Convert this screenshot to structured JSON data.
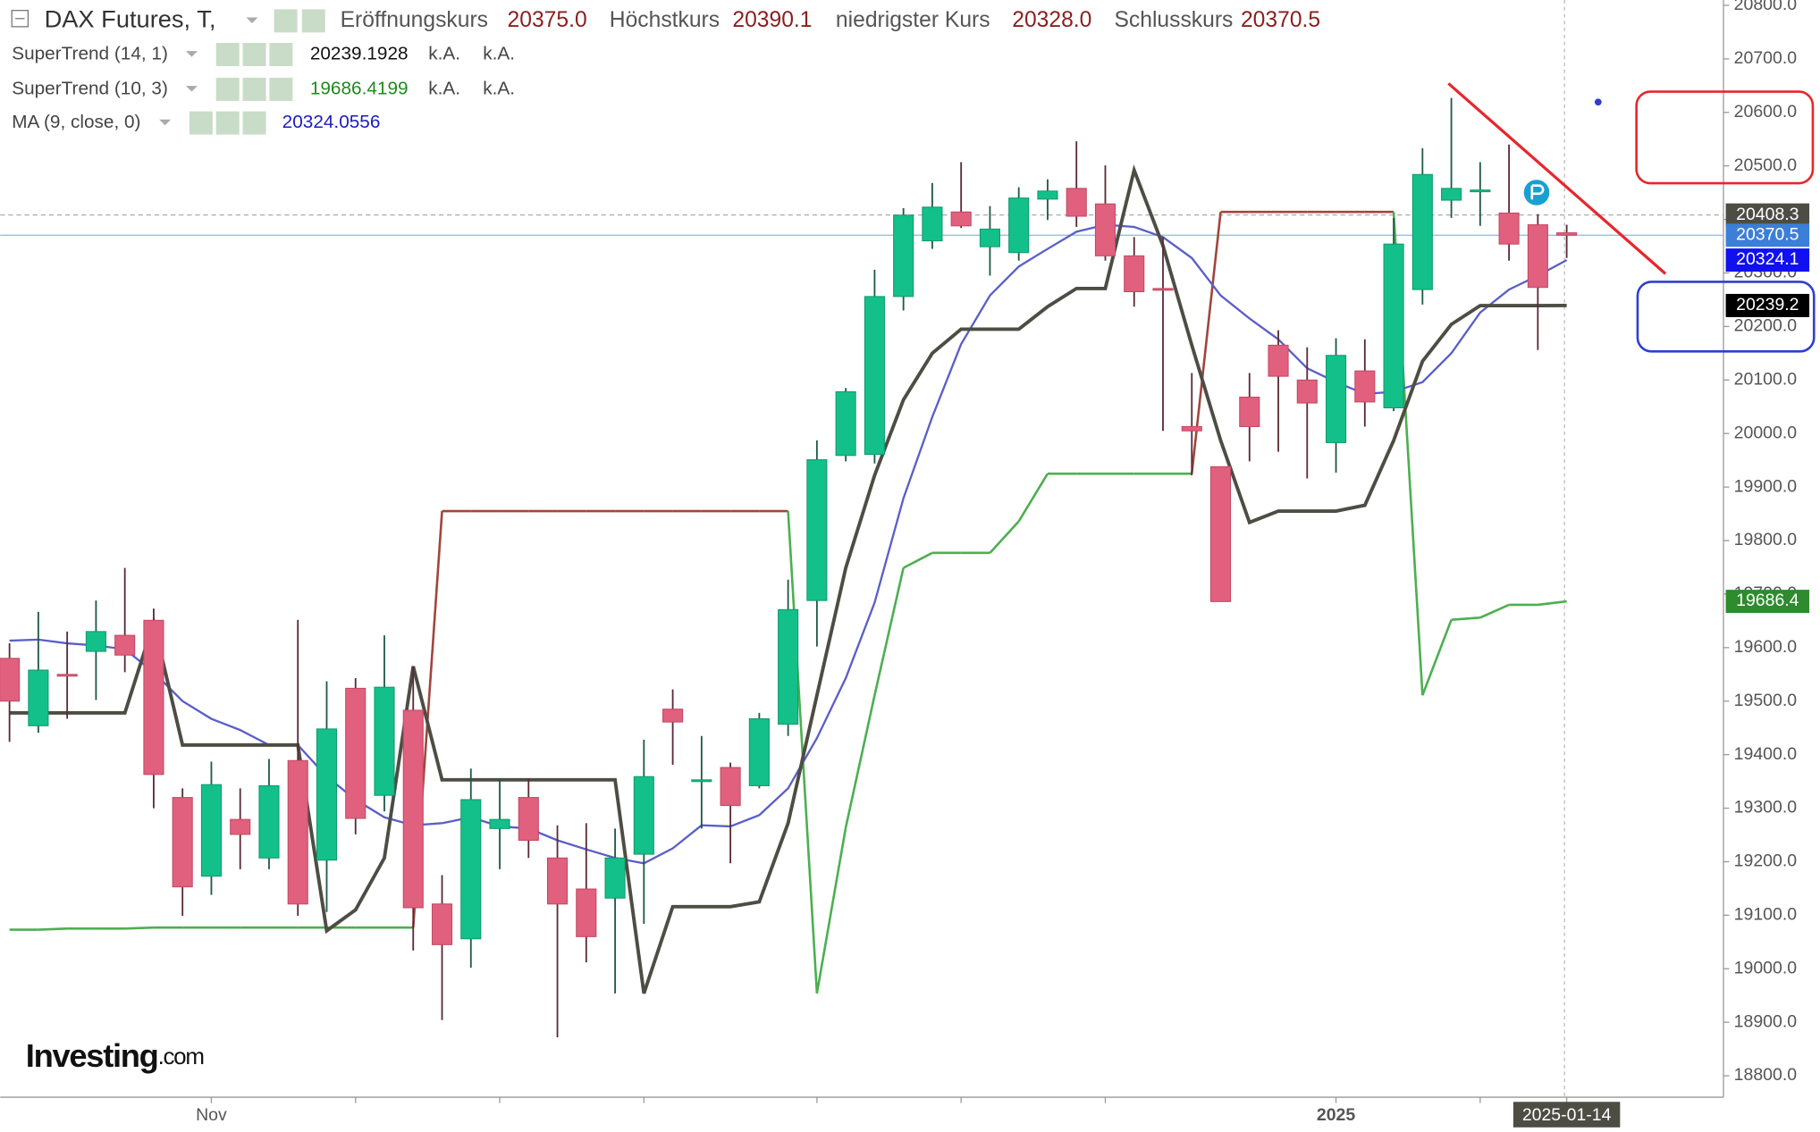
{
  "chart_data": {
    "type": "candlestick",
    "title": "DAX Futures, T,",
    "ohlc_names": [
      "Eröffnungskurs",
      "Höchstkurs",
      "niedrigster Kurs",
      "Schlusskurs"
    ],
    "ohlc_last_labels": [
      "20375.0",
      "20390.1",
      "20328.0",
      "20370.5"
    ],
    "categories": [
      null,
      null,
      null,
      null,
      null,
      null,
      null,
      "Nov",
      null,
      null,
      null,
      null,
      null,
      null,
      null,
      null,
      null,
      null,
      null,
      null,
      null,
      null,
      null,
      null,
      null,
      null,
      null,
      null,
      null,
      null,
      null,
      null,
      null,
      null,
      null,
      null,
      null,
      null,
      null,
      null,
      null,
      null,
      null,
      null,
      null,
      null,
      "2025",
      null,
      null,
      null,
      null,
      null,
      null,
      null,
      "2025-01-14"
    ],
    "open": [
      19580,
      19454,
      19550,
      19593,
      19623,
      19651,
      19320,
      19173,
      19279,
      19207,
      19389,
      19203,
      19524,
      19324,
      19483,
      19121,
      19056,
      19262,
      19320,
      19207,
      19149,
      19132,
      19214,
      19485,
      19353,
      19376,
      19342,
      19457,
      19688,
      19959,
      19961,
      20256,
      20360,
      20414,
      20349,
      20338,
      20438,
      20458,
      20429,
      20332,
      20271,
      20013,
      19938,
      20068,
      20165,
      20100,
      19983,
      20117,
      20048,
      20269,
      20436,
      20455,
      20412,
      20390,
      20375
    ],
    "high": [
      19608,
      19667,
      19630,
      19688,
      19749,
      19673,
      19337,
      19387,
      19337,
      19392,
      19652,
      19537,
      19543,
      19623,
      19565,
      19175,
      19374,
      19355,
      19355,
      19268,
      19272,
      19262,
      19428,
      19522,
      19435,
      19385,
      19478,
      19727,
      19987,
      20085,
      20306,
      20421,
      20468,
      20507,
      20425,
      20460,
      20475,
      20546,
      20501,
      20367,
      20367,
      20113,
      19938,
      20113,
      20193,
      20161,
      20178,
      20176,
      20403,
      20533,
      20627,
      20507,
      20540,
      20410,
      20390.1
    ],
    "low": [
      19424,
      19441,
      19467,
      19502,
      19554,
      19300,
      19099,
      19138,
      19186,
      19186,
      19099,
      19106,
      19251,
      19294,
      19034,
      18904,
      19002,
      19186,
      19207,
      18872,
      19012,
      18954,
      19084,
      19381,
      19262,
      19197,
      19337,
      19435,
      19602,
      19948,
      19944,
      20230,
      20345,
      20384,
      20295,
      20323,
      20399,
      20386,
      20323,
      20237,
      20005,
      19922,
      19686,
      19948,
      19966,
      19916,
      19927,
      20013,
      20042,
      20241,
      20403,
      20388,
      20323,
      20156,
      20328
    ],
    "close": [
      19500,
      19558,
      19548,
      19630,
      19586,
      19363,
      19153,
      19344,
      19251,
      19342,
      19121,
      19448,
      19281,
      19526,
      19114,
      19045,
      19316,
      19279,
      19240,
      19121,
      19060,
      19207,
      19359,
      19461,
      19353,
      19305,
      19467,
      19671,
      19951,
      20078,
      20256,
      20408,
      20423,
      20388,
      20382,
      20440,
      20453,
      20406,
      20332,
      20265,
      20269,
      20005,
      19686,
      20013,
      20107,
      20057,
      20146,
      20059,
      20354,
      20484,
      20458,
      20455,
      20354,
      20273,
      20370.5
    ],
    "up_color": "#14c08a",
    "down_color": "#e0607e",
    "series": [
      {
        "name": "SuperTrend (14, 1)",
        "color": "#4d4d44",
        "value_color": "#111111",
        "extra": [
          "k.A.",
          "k.A."
        ],
        "values": [
          19478,
          19478,
          19478,
          19478,
          19478,
          19647,
          19418,
          19418,
          19418,
          19418,
          19418,
          19071,
          19110,
          19207,
          19565,
          19353,
          19353,
          19353,
          19353,
          19353,
          19353,
          19353,
          18954,
          19116,
          19116,
          19116,
          19125,
          19272,
          19511,
          19749,
          19922,
          20063,
          20150,
          20195,
          20195,
          20195,
          20237,
          20271,
          20271,
          20492,
          20351,
          20165,
          19987,
          19834,
          19855,
          19855,
          19855,
          19866,
          19987,
          20135,
          20204,
          20239,
          20239,
          20239,
          20239.1928
        ]
      },
      {
        "name": "SuperTrend (10, 3)",
        "color": "#4caf50",
        "value_color": "#1d8a1d",
        "extra": [
          "k.A.",
          "k.A."
        ],
        "values": [
          19073,
          19073,
          19075,
          19075,
          19075,
          19077,
          19077,
          19077,
          19077,
          19077,
          19077,
          19077,
          19077,
          19077,
          19077,
          19855,
          19855,
          19855,
          19855,
          19855,
          19855,
          19855,
          19855,
          19855,
          19855,
          19855,
          19855,
          19855,
          18954,
          19264,
          19511,
          19749,
          19777,
          19777,
          19777,
          19836,
          19925,
          19925,
          19925,
          19925,
          19925,
          19925,
          20414,
          20414,
          20414,
          20414,
          20414,
          20414,
          20414,
          19511,
          19652,
          19656,
          19680,
          19680,
          19686.4199
        ],
        "point_colors": [
          "#4caf50",
          "#4caf50",
          "#4caf50",
          "#4caf50",
          "#4caf50",
          "#4caf50",
          "#4caf50",
          "#4caf50",
          "#4caf50",
          "#4caf50",
          "#4caf50",
          "#4caf50",
          "#4caf50",
          "#4caf50",
          "#4caf50",
          "#a0463c",
          "#a0463c",
          "#a0463c",
          "#a0463c",
          "#a0463c",
          "#a0463c",
          "#a0463c",
          "#a0463c",
          "#a0463c",
          "#a0463c",
          "#a0463c",
          "#a0463c",
          "#a0463c",
          "#4caf50",
          "#4caf50",
          "#4caf50",
          "#4caf50",
          "#4caf50",
          "#4caf50",
          "#4caf50",
          "#4caf50",
          "#4caf50",
          "#4caf50",
          "#4caf50",
          "#4caf50",
          "#4caf50",
          "#4caf50",
          "#a0463c",
          "#a0463c",
          "#a0463c",
          "#a0463c",
          "#a0463c",
          "#a0463c",
          "#a0463c",
          "#4caf50",
          "#4caf50",
          "#4caf50",
          "#4caf50",
          "#4caf50",
          "#4caf50"
        ]
      },
      {
        "name": "MA (9, close, 0)",
        "color": "#5a5fc8",
        "value_color": "#1c1cc0",
        "values": [
          19613,
          19615,
          19608,
          19604,
          19597,
          19554,
          19500,
          19467,
          19446,
          19418,
          19418,
          19359,
          19316,
          19283,
          19268,
          19272,
          19283,
          19266,
          19262,
          19240,
          19223,
          19207,
          19197,
          19225,
          19268,
          19266,
          19287,
          19337,
          19431,
          19543,
          19684,
          19879,
          20031,
          20167,
          20258,
          20312,
          20345,
          20377,
          20390,
          20386,
          20367,
          20328,
          20258,
          20215,
          20176,
          20122,
          20096,
          20074,
          20078,
          20096,
          20150,
          20226,
          20269,
          20295,
          20324.0556
        ]
      }
    ],
    "ylim": [
      18760,
      20810
    ],
    "yticks": [
      {
        "value": 18800,
        "label": "18800.0"
      },
      {
        "value": 18900,
        "label": "18900.0"
      },
      {
        "value": 19000,
        "label": "19000.0"
      },
      {
        "value": 19100,
        "label": "19100.0"
      },
      {
        "value": 19200,
        "label": "19200.0"
      },
      {
        "value": 19300,
        "label": "19300.0"
      },
      {
        "value": 19400,
        "label": "19400.0"
      },
      {
        "value": 19500,
        "label": "19500.0"
      },
      {
        "value": 19600,
        "label": "19600.0"
      },
      {
        "value": 19700,
        "label": "19700.0"
      },
      {
        "value": 19800,
        "label": "19800.0"
      },
      {
        "value": 19900,
        "label": "19900.0"
      },
      {
        "value": 20000,
        "label": "20000.0"
      },
      {
        "value": 20100,
        "label": "20100.0"
      },
      {
        "value": 20200,
        "label": "20200.0"
      },
      {
        "value": 20300,
        "label": "20300.0"
      },
      {
        "value": 20400,
        "label": "20400.0"
      },
      {
        "value": 20500,
        "label": "20500.0"
      },
      {
        "value": 20600,
        "label": "20600.0"
      },
      {
        "value": 20700,
        "label": "20700.0"
      },
      {
        "value": 20800,
        "label": "20800.0"
      }
    ],
    "price_tags": [
      {
        "value": 20408.3,
        "color": "#4d4d44"
      },
      {
        "value": 20370.5,
        "color": "#3c7fd6"
      },
      {
        "value": 20324.1,
        "color": "#1010f0"
      },
      {
        "value": 20239.2,
        "color": "#000000"
      },
      {
        "value": 19686.4,
        "color": "#2e8b2e"
      }
    ],
    "watermark": "Investing",
    "watermark_suffix": ".com"
  }
}
